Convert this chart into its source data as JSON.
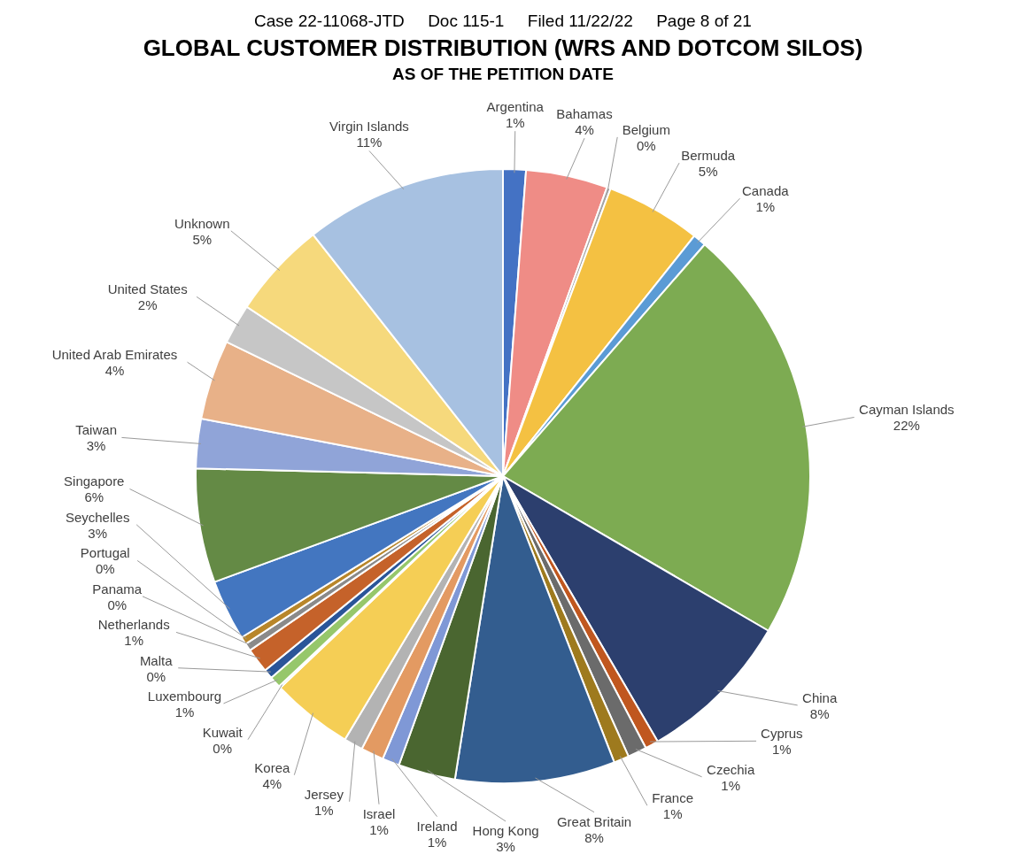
{
  "chart_data": {
    "type": "pie",
    "title": "GLOBAL CUSTOMER DISTRIBUTION (WRS AND DOTCOM SILOS)",
    "subtitle": "AS OF THE PETITION DATE",
    "annotations": [
      "Case 22-11068-JTD     Doc 115-1     Filed 11/22/22     Page 8 of 21"
    ],
    "categories": [
      "Argentina",
      "Bahamas",
      "Belgium",
      "Bermuda",
      "Canada",
      "Cayman Islands",
      "China",
      "Cyprus",
      "Czechia",
      "France",
      "Great Britain",
      "Hong Kong",
      "Ireland",
      "Israel",
      "Jersey",
      "Korea",
      "Kuwait",
      "Luxembourg",
      "Malta",
      "Netherlands",
      "Panama",
      "Portugal",
      "Seychelles",
      "Singapore",
      "Taiwan",
      "United Arab Emirates",
      "United States",
      "Unknown",
      "Virgin Islands"
    ],
    "values": [
      1.2,
      4.3,
      0.2,
      5.0,
      0.7,
      22.0,
      8.2,
      0.7,
      1.0,
      0.8,
      8.4,
      3.0,
      0.9,
      1.2,
      1.0,
      4.3,
      0.1,
      0.6,
      0.5,
      1.3,
      0.4,
      0.4,
      3.2,
      6.0,
      2.6,
      4.2,
      2.1,
      5.1,
      10.6
    ],
    "value_labels": [
      "1%",
      "4%",
      "0%",
      "5%",
      "1%",
      "22%",
      "8%",
      "1%",
      "1%",
      "1%",
      "8%",
      "3%",
      "1%",
      "1%",
      "1%",
      "4%",
      "0%",
      "1%",
      "0%",
      "1%",
      "0%",
      "0%",
      "3%",
      "6%",
      "3%",
      "4%",
      "2%",
      "5%",
      "11%"
    ],
    "colors": [
      "#4472c4",
      "#ef8c86",
      "#a5a5a5",
      "#f4c142",
      "#5b9bd5",
      "#7dab52",
      "#2c3f6e",
      "#c0571f",
      "#6b6b6b",
      "#9e7a1e",
      "#335d8f",
      "#4a6630",
      "#7f98d6",
      "#e39a62",
      "#b3b3b3",
      "#f5ce55",
      "#5b9bd5",
      "#96c76b",
      "#2a5599",
      "#c5622a",
      "#8a8a8a",
      "#b8862a",
      "#4376c0",
      "#648a45",
      "#90a4d8",
      "#e8b188",
      "#c6c6c6",
      "#f6d97c",
      "#a7c1e1"
    ]
  }
}
